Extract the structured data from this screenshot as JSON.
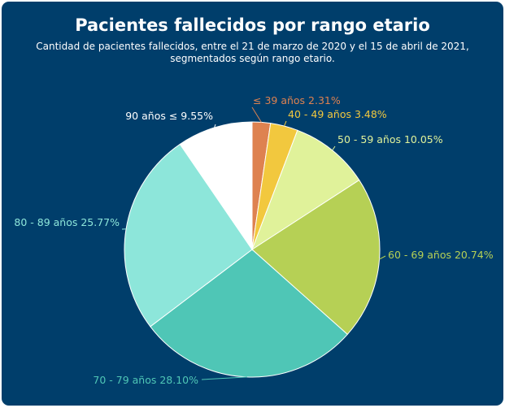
{
  "title": "Pacientes fallecidos por rango etario",
  "subtitle_line1": "Cantidad de pacientes fallecidos, entre el 21 de marzo de 2020 y el 15 de abril de 2021,",
  "subtitle_line2": "segmentados según rango etario.",
  "colors": {
    "background": "#003e6b",
    "text": "#ffffff"
  },
  "chart_data": {
    "type": "pie",
    "title": "Pacientes fallecidos por rango etario",
    "subtitle": "Cantidad de pacientes fallecidos, entre el 21 de marzo de 2020 y el 15 de abril de 2021, segmentados según rango etario.",
    "slices": [
      {
        "label": "≤ 39 años",
        "value": 2.31,
        "value_label": "2.31%",
        "color": "#de8250"
      },
      {
        "label": "40 - 49 años",
        "value": 3.48,
        "value_label": "3.48%",
        "color": "#f2c83e"
      },
      {
        "label": "50 - 59 años",
        "value": 10.05,
        "value_label": "10.05%",
        "color": "#e0f29a"
      },
      {
        "label": "60 - 69 años",
        "value": 20.74,
        "value_label": "20.74%",
        "color": "#b6d055"
      },
      {
        "label": "70 - 79 años",
        "value": 28.1,
        "value_label": "28.10%",
        "color": "#4fc6b6"
      },
      {
        "label": "80 - 89 años",
        "value": 25.77,
        "value_label": "25.77%",
        "color": "#8de6da"
      },
      {
        "label": "90 años ≤",
        "value": 9.55,
        "value_label": "9.55%",
        "color": "#ffffff"
      }
    ],
    "start_angle": "12 o'clock",
    "direction": "clockwise",
    "legend": "none",
    "labels": "outside with leader lines"
  }
}
